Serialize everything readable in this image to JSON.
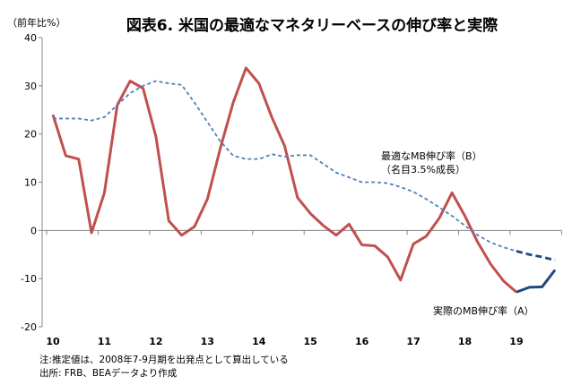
{
  "chart_data": {
    "type": "line",
    "title": "図表6. 米国の最適なマネタリーベースの伸び率と実際",
    "ylabel": "（前年比%）",
    "ylim": [
      -20,
      40
    ],
    "yticks": [
      40,
      30,
      20,
      10,
      0,
      -10,
      -20
    ],
    "xtick_labels": [
      "10",
      "11",
      "12",
      "13",
      "14",
      "15",
      "16",
      "17",
      "18",
      "19"
    ],
    "x_start": "2010Q1",
    "x_end": "2019Q4",
    "frequency": "quarterly",
    "forecast_start_index": 36,
    "series": [
      {
        "name": "実際のMB伸び率（A）",
        "color": "#c0504d",
        "forecast_color": "#1f497d",
        "values": [
          24,
          15.5,
          14.8,
          -0.5,
          7.8,
          26,
          31,
          29.5,
          19.5,
          2,
          -1,
          0.8,
          6.5,
          17,
          26.5,
          33.7,
          30.5,
          23.5,
          17.5,
          6.8,
          3.5,
          1,
          -1,
          1.3,
          -3,
          -3.2,
          -5.5,
          -10.3,
          -2.8,
          -1.2,
          2.5,
          7.8,
          3,
          -2.5,
          -7,
          -10.5,
          -12.8,
          -11.8,
          -11.7,
          -8.2
        ]
      },
      {
        "name": "最適なMB伸び率（B）",
        "name_line2": "（名目3.5%成長）",
        "color": "#4f81bd",
        "forecast_color": "#1f497d",
        "values": [
          23.2,
          23.2,
          23.2,
          22.8,
          23.5,
          26,
          28.5,
          30,
          31,
          30.5,
          30.2,
          26.5,
          22.5,
          18.5,
          15.5,
          14.8,
          14.8,
          15.8,
          15.3,
          15.6,
          15.6,
          13.8,
          12,
          11,
          10,
          10,
          9.8,
          9,
          8,
          6.5,
          4.8,
          3,
          1,
          -1,
          -2.5,
          -3.5,
          -4.3,
          -5,
          -5.5,
          -6.2
        ]
      }
    ]
  },
  "notes": {
    "line1": "注:推定値は、2008年7-9月期を出発点として算出している",
    "line2": "出所: FRB、BEAデータより作成"
  }
}
